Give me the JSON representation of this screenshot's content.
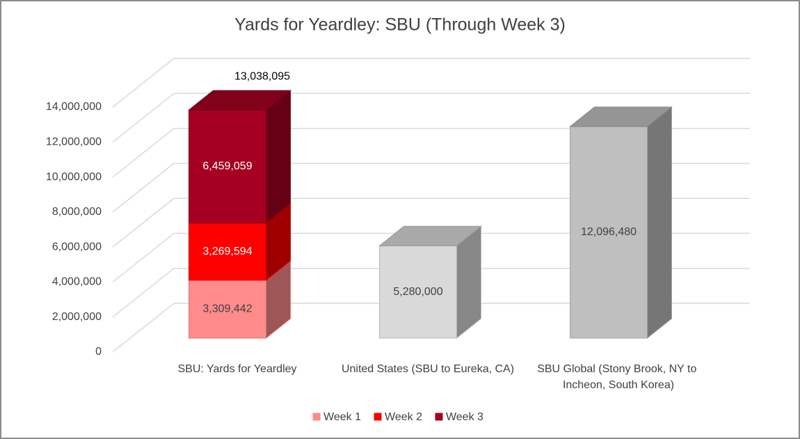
{
  "chart_data": {
    "type": "bar3d_stacked",
    "title": "Yards for Yeardley: SBU (Through Week 3)",
    "categories": [
      "SBU: Yards for Yeardley",
      "United States (SBU to Eureka, CA)",
      "SBU Global (Stony Brook, NY to Incheon, South Korea)"
    ],
    "series": [
      {
        "name": "Week 1",
        "color": "#ff8b8b",
        "label_color": "#404040",
        "values": [
          3309442,
          null,
          null
        ],
        "value_labels": [
          "3,309,442",
          null,
          null
        ]
      },
      {
        "name": "Week 2",
        "color": "#ff0000",
        "label_color": "#ffffff",
        "values": [
          3269594,
          null,
          null
        ],
        "value_labels": [
          "3,269,594",
          null,
          null
        ]
      },
      {
        "name": "Week 3",
        "color": "#a50021",
        "label_color": "#ffffff",
        "values": [
          6459059,
          null,
          null
        ],
        "value_labels": [
          "6,459,059",
          null,
          null
        ]
      }
    ],
    "total": {
      "category": 0,
      "value": 13038095,
      "label": "13,038,095"
    },
    "reference_bars": {
      "values": [
        null,
        5280000,
        12096480
      ],
      "value_labels": [
        null,
        "5,280,000",
        "12,096,480"
      ],
      "colors": [
        null,
        "#d9d9d9",
        "#bfbfbf"
      ],
      "label_color": "#404040"
    },
    "ylim": [
      0,
      14000000
    ],
    "yticks": [
      {
        "value": 0,
        "label": "0"
      },
      {
        "value": 2000000,
        "label": "2,000,000"
      },
      {
        "value": 4000000,
        "label": "4,000,000"
      },
      {
        "value": 6000000,
        "label": "6,000,000"
      },
      {
        "value": 8000000,
        "label": "8,000,000"
      },
      {
        "value": 10000000,
        "label": "10,000,000"
      },
      {
        "value": 12000000,
        "label": "12,000,000"
      },
      {
        "value": 14000000,
        "label": "14,000,000"
      }
    ],
    "grid": true,
    "legend": "bottom"
  }
}
